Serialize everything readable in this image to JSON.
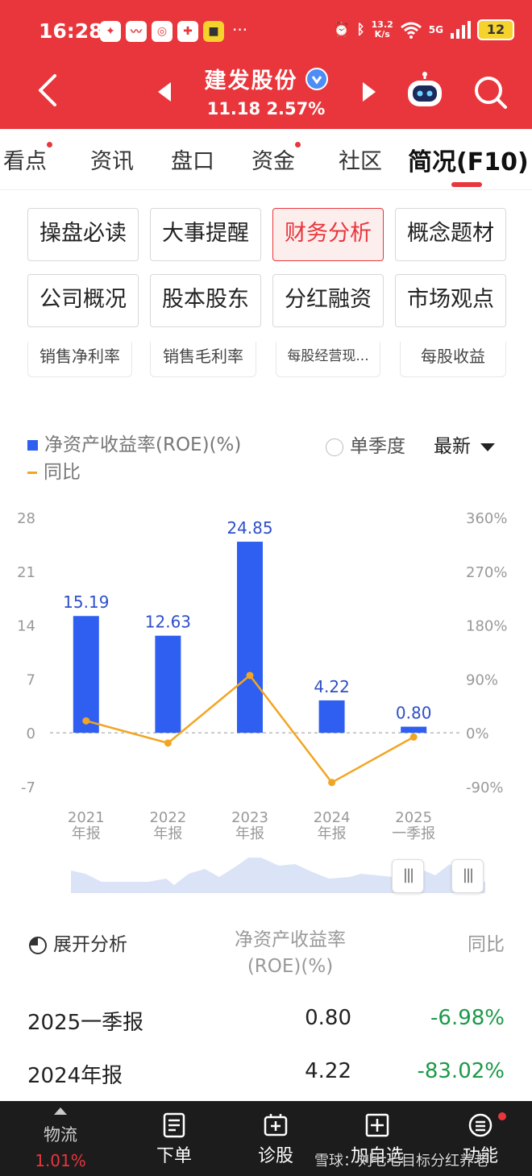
{
  "status_bar": {
    "time": "16:28",
    "net_speed_value": "13.2",
    "net_speed_unit": "K/s",
    "network": "5G",
    "battery": "12",
    "more": "···"
  },
  "header": {
    "stock_name": "建发股份",
    "quote": "11.18 2.57%"
  },
  "tabs": [
    {
      "label": "看点",
      "dot": true
    },
    {
      "label": "资讯",
      "dot": false
    },
    {
      "label": "盘口",
      "dot": false
    },
    {
      "label": "资金",
      "dot": true
    },
    {
      "label": "社区",
      "dot": false
    },
    {
      "label": "简况(F10)",
      "dot": false,
      "active": true
    }
  ],
  "menu": [
    {
      "label": "操盘必读"
    },
    {
      "label": "大事提醒"
    },
    {
      "label": "财务分析",
      "active": true
    },
    {
      "label": "概念题材"
    },
    {
      "label": "公司概况"
    },
    {
      "label": "股本股东"
    },
    {
      "label": "分红融资"
    },
    {
      "label": "市场观点"
    }
  ],
  "sub_tabs": [
    "销售净利率",
    "销售毛利率",
    "每股经营现...",
    "每股收益"
  ],
  "legend": {
    "roe": "净资产收益率(ROE)(%)",
    "yoy": "同比",
    "single_quarter": "单季度",
    "period": "最新"
  },
  "chart_data": {
    "type": "bar",
    "title": "净资产收益率(ROE)(%)",
    "categories": [
      [
        "2021",
        "年报"
      ],
      [
        "2022",
        "年报"
      ],
      [
        "2023",
        "年报"
      ],
      [
        "2024",
        "年报"
      ],
      [
        "2025",
        "一季报"
      ]
    ],
    "series": [
      {
        "name": "净资产收益率(ROE)(%)",
        "type": "bar",
        "axis": "left",
        "values": [
          15.19,
          12.63,
          24.85,
          4.22,
          0.8
        ],
        "labels": [
          "15.19",
          "12.63",
          "24.85",
          "4.22",
          "0.80"
        ],
        "color": "#2f5ff0"
      },
      {
        "name": "同比",
        "type": "line",
        "axis": "right",
        "values": [
          20,
          -17,
          96,
          -83,
          -7
        ],
        "color": "#f2a522"
      }
    ],
    "left_axis": {
      "ticks": [
        28,
        21,
        14,
        7,
        0,
        -7
      ],
      "range": [
        -7,
        28
      ]
    },
    "right_axis": {
      "ticks": [
        "360%",
        "270%",
        "180%",
        "90%",
        "0%",
        "-90%"
      ],
      "range": [
        -90,
        360
      ]
    }
  },
  "table": {
    "expand_label": "展开分析",
    "col_roe_1": "净资产收益率",
    "col_roe_2": "(ROE)(%)",
    "col_yoy": "同比",
    "rows": [
      {
        "period": "2025一季报",
        "value": "0.80",
        "yoy": "-6.98%"
      },
      {
        "period": "2024年报",
        "value": "4.22",
        "yoy": "-83.02%"
      }
    ]
  },
  "bottom_bar": {
    "wuliu_label": "物流",
    "wuliu_change": "1.01%",
    "order": "下单",
    "diagnose": "诊股",
    "add_watch": "加自选",
    "functions": "功能"
  },
  "watermark": "雪球：刘七七目标分红养老"
}
